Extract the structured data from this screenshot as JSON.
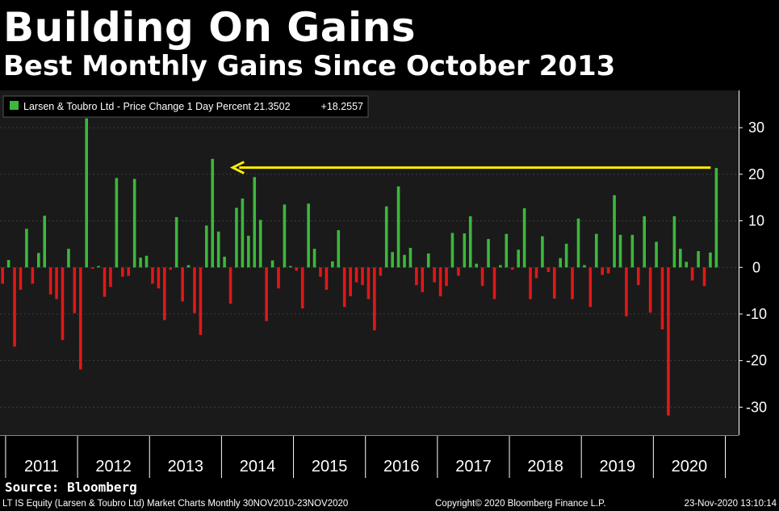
{
  "header": {
    "title": "Building On Gains",
    "subtitle": "Best Monthly Gains Since October 2013"
  },
  "source": "Source: Bloomberg",
  "footer": {
    "left": "LT IS Equity (Larsen & Toubro Ltd) Market Charts   Monthly 30NOV2010-23NOV2020",
    "copyright": "Copyright© 2020 Bloomberg Finance L.P.",
    "timestamp": "23-Nov-2020 13:10:14"
  },
  "colors": {
    "positive": "#3cb83c",
    "negative": "#e01818",
    "plot_bg": "#1a1a1a",
    "grid": "#3c3c3c",
    "arrow": "#ffee00",
    "axis_text": "#ffffff"
  },
  "chart_data": {
    "type": "bar",
    "legend": {
      "label": "Larsen & Toubro Ltd - Price Change 1 Day Percent 21.3502",
      "value": "+18.2557",
      "position": "top-left"
    },
    "ylim": [
      -36,
      38
    ],
    "yticks": [
      30,
      20,
      10,
      0,
      -10,
      -20,
      -30
    ],
    "ytick_labels": [
      "30",
      "20",
      "10",
      "0",
      "-10",
      "-20",
      "-30"
    ],
    "grid": true,
    "year_labels": [
      "2011",
      "2012",
      "2013",
      "2014",
      "2015",
      "2016",
      "2017",
      "2018",
      "2019",
      "2020"
    ],
    "series": [
      {
        "start": "2010-12",
        "values": [
          -3.5,
          1.6,
          -17.0,
          -4.8,
          8.3,
          -3.5,
          3.1,
          11.1,
          -5.8,
          -6.8,
          -15.6,
          4.0,
          -9.8,
          -21.9,
          32.0,
          -0.3,
          0.3,
          -6.3,
          -4.2,
          19.2,
          -2.0,
          -1.8,
          19.0,
          2.1,
          2.5,
          -3.5,
          -4.5,
          -11.3,
          -0.5,
          10.8,
          -7.3,
          0.5,
          -9.8,
          -14.5,
          9.0,
          23.3,
          7.7,
          2.3,
          -7.8,
          12.8,
          14.8,
          6.8,
          19.4,
          10.2,
          -11.5,
          1.5,
          -4.5,
          13.5,
          0.3,
          -0.7,
          -8.8,
          13.7,
          4.0,
          -2.0,
          -4.8,
          1.3,
          8.0,
          -8.5,
          -6.2,
          -3.2,
          -3.8,
          -6.8,
          -13.5,
          -1.8,
          13.1,
          3.3,
          17.4,
          2.7,
          4.2,
          -3.8,
          -5.3,
          3.0,
          -3.2,
          -6.2,
          -4.0,
          7.4,
          -1.8,
          7.3,
          11.0,
          0.8,
          -4.0,
          6.1,
          -6.8,
          0.5,
          7.2,
          -0.5,
          3.8,
          12.7,
          -6.8,
          -2.3,
          6.7,
          -1.0,
          -6.7,
          2.0,
          5.1,
          -6.8,
          10.5,
          0.5,
          -8.5,
          7.2,
          -1.6,
          -1.3,
          15.5,
          7.0,
          -10.5,
          7.0,
          -3.8,
          11.0,
          -9.7,
          5.5,
          -13.3,
          -31.8,
          11.0,
          4.0,
          1.2,
          -2.8,
          3.5,
          -4.0,
          3.2,
          21.35
        ]
      }
    ]
  }
}
